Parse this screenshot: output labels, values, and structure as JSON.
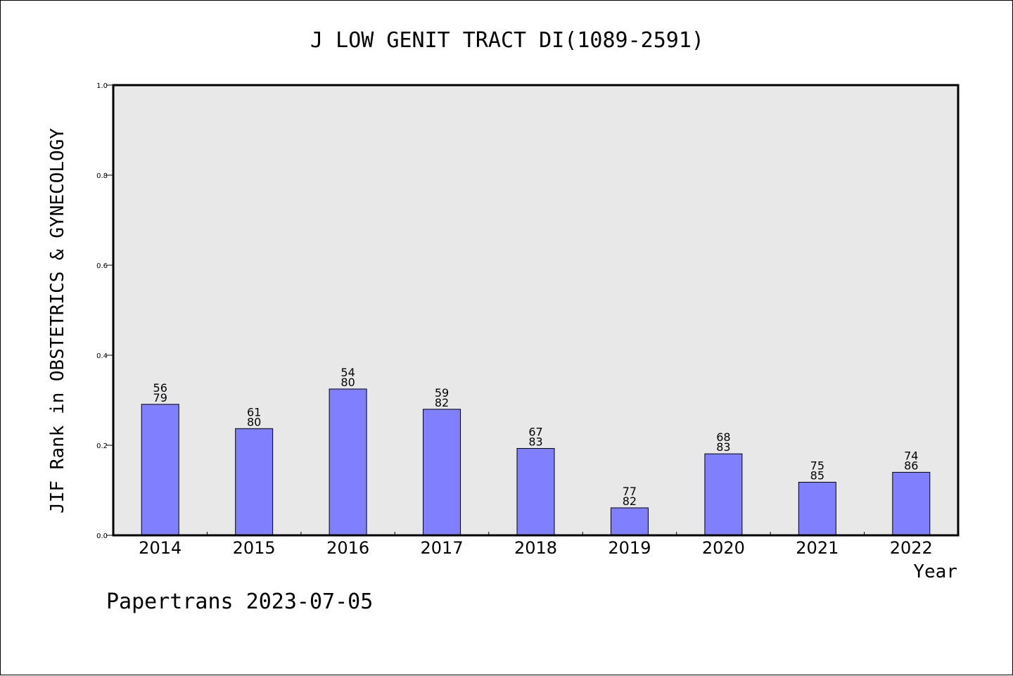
{
  "footer": {
    "text": "Papertrans 2023-07-05"
  },
  "colors": {
    "bar": "#8080ff",
    "plot_bg": "#e8e8e8",
    "axis": "#000000"
  },
  "chart_data": {
    "type": "bar",
    "title": "J LOW GENIT TRACT DI(1089-2591)",
    "xlabel": "Year",
    "ylabel": "JIF Rank in OBSTETRICS & GYNECOLOGY",
    "ylim": [
      0,
      1.0
    ],
    "yticks": [
      "0.0",
      "0.2",
      "0.4",
      "0.6",
      "0.8",
      "1.0"
    ],
    "grid": false,
    "categories": [
      "2014",
      "2015",
      "2016",
      "2017",
      "2018",
      "2019",
      "2020",
      "2021",
      "2022"
    ],
    "values": [
      0.291,
      0.237,
      0.325,
      0.28,
      0.193,
      0.061,
      0.181,
      0.118,
      0.14
    ],
    "rank": [
      "56",
      "61",
      "54",
      "59",
      "67",
      "77",
      "68",
      "75",
      "74"
    ],
    "total": [
      "79",
      "80",
      "80",
      "82",
      "83",
      "82",
      "83",
      "85",
      "86"
    ]
  }
}
